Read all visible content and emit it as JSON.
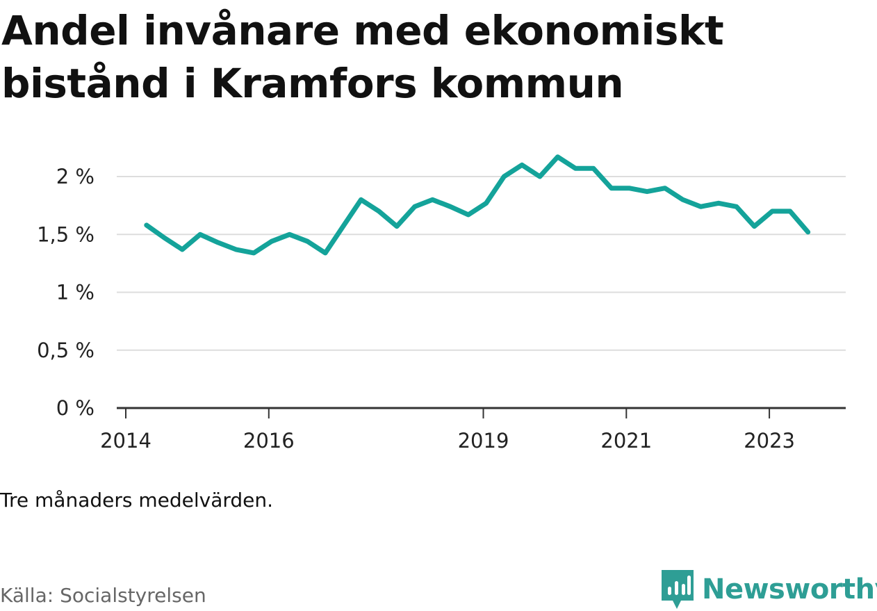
{
  "title": "Andel invånare med ekonomiskt bistånd i Kramfors kommun",
  "note": "Tre månaders medelvärden.",
  "source": "Källa: Socialstyrelsen",
  "brand": {
    "name": "Newsworthy",
    "icon": "newsworthy-logo-icon",
    "color": "#2e9e95"
  },
  "chart_data": {
    "type": "line",
    "title": "Andel invånare med ekonomiskt bistånd i Kramfors kommun",
    "xlabel": "",
    "ylabel": "",
    "ylim": [
      0,
      2.2
    ],
    "xlim": [
      2014.0,
      2024.0
    ],
    "y_ticks": [
      {
        "value": 0,
        "label": "0 %"
      },
      {
        "value": 0.5,
        "label": "0,5 %"
      },
      {
        "value": 1,
        "label": "1 %"
      },
      {
        "value": 1.5,
        "label": "1,5 %"
      },
      {
        "value": 2,
        "label": "2 %"
      }
    ],
    "x_ticks": [
      {
        "value": 2014.0,
        "label": "2014"
      },
      {
        "value": 2016.0,
        "label": "2016"
      },
      {
        "value": 2019.0,
        "label": "2019"
      },
      {
        "value": 2021.0,
        "label": "2021"
      },
      {
        "value": 2023.0,
        "label": "2023"
      }
    ],
    "grid": true,
    "legend": "none",
    "line_color": "#14a39a",
    "series": [
      {
        "values": [
          {
            "x": 2014.29,
            "y": 1.58
          },
          {
            "x": 2014.54,
            "y": 1.47
          },
          {
            "x": 2014.79,
            "y": 1.37
          },
          {
            "x": 2015.04,
            "y": 1.5
          },
          {
            "x": 2015.29,
            "y": 1.43
          },
          {
            "x": 2015.54,
            "y": 1.37
          },
          {
            "x": 2015.79,
            "y": 1.34
          },
          {
            "x": 2016.04,
            "y": 1.44
          },
          {
            "x": 2016.29,
            "y": 1.5
          },
          {
            "x": 2016.54,
            "y": 1.44
          },
          {
            "x": 2016.79,
            "y": 1.34
          },
          {
            "x": 2017.04,
            "y": 1.57
          },
          {
            "x": 2017.29,
            "y": 1.8
          },
          {
            "x": 2017.54,
            "y": 1.7
          },
          {
            "x": 2017.79,
            "y": 1.57
          },
          {
            "x": 2018.04,
            "y": 1.74
          },
          {
            "x": 2018.29,
            "y": 1.8
          },
          {
            "x": 2018.54,
            "y": 1.74
          },
          {
            "x": 2018.79,
            "y": 1.67
          },
          {
            "x": 2019.04,
            "y": 1.77
          },
          {
            "x": 2019.29,
            "y": 2.0
          },
          {
            "x": 2019.54,
            "y": 2.1
          },
          {
            "x": 2019.79,
            "y": 2.0
          },
          {
            "x": 2020.04,
            "y": 2.17
          },
          {
            "x": 2020.29,
            "y": 2.07
          },
          {
            "x": 2020.54,
            "y": 2.07
          },
          {
            "x": 2020.79,
            "y": 1.9
          },
          {
            "x": 2021.04,
            "y": 1.9
          },
          {
            "x": 2021.29,
            "y": 1.87
          },
          {
            "x": 2021.54,
            "y": 1.9
          },
          {
            "x": 2021.79,
            "y": 1.8
          },
          {
            "x": 2022.04,
            "y": 1.74
          },
          {
            "x": 2022.29,
            "y": 1.77
          },
          {
            "x": 2022.54,
            "y": 1.74
          },
          {
            "x": 2022.79,
            "y": 1.57
          },
          {
            "x": 2023.04,
            "y": 1.7
          },
          {
            "x": 2023.29,
            "y": 1.7
          },
          {
            "x": 2023.54,
            "y": 1.52
          }
        ]
      }
    ]
  }
}
